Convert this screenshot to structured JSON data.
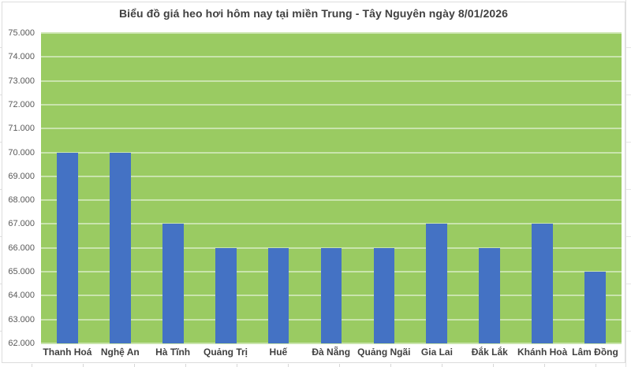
{
  "chart_data": {
    "type": "bar",
    "title": "Biểu đồ giá heo hơi hôm nay tại miền Trung - Tây Nguyên ngày 8/01/2026",
    "categories": [
      "Thanh Hoá",
      "Nghệ An",
      "Hà Tĩnh",
      "Quảng Trị",
      "Huế",
      "Đà Nẵng",
      "Quảng Ngãi",
      "Gia Lai",
      "Đắk Lắk",
      "Khánh Hoà",
      "Lâm Đồng"
    ],
    "values": [
      70000,
      70000,
      67000,
      66000,
      66000,
      66000,
      66000,
      67000,
      66000,
      67000,
      65000
    ],
    "xlabel": "",
    "ylabel": "",
    "ylim": [
      62000,
      75000
    ],
    "ytick_step": 1000,
    "ytick_labels": [
      "75.000",
      "74.000",
      "73.000",
      "72.000",
      "71.000",
      "70.000",
      "69.000",
      "68.000",
      "67.000",
      "66.000",
      "65.000",
      "64.000",
      "63.000",
      "62.000"
    ],
    "grid": true,
    "legend": false,
    "colors": {
      "bar": "#4472C4",
      "plot_bg": "#9ACB62",
      "gridline": "#C9E4AC",
      "title_text": "#404040",
      "ytick_text": "#595959",
      "xtick_text": "#404040",
      "chart_border": "#DCDCDC",
      "canvas_bg": "#FFFFFF"
    }
  }
}
